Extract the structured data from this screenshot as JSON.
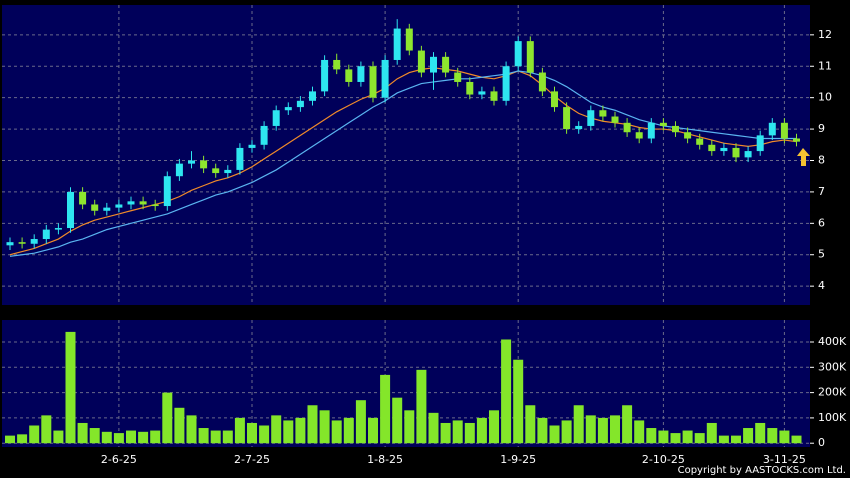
{
  "chart_data": [
    {
      "type": "candlestick",
      "up_color": "#2ee6f0",
      "down_color": "#8ee62e",
      "open": [
        5.3,
        5.4,
        5.35,
        5.5,
        5.8,
        5.85,
        7.0,
        6.6,
        6.4,
        6.5,
        6.6,
        6.7,
        6.6,
        6.55,
        7.5,
        7.9,
        8.0,
        7.75,
        7.6,
        7.7,
        8.4,
        8.5,
        9.1,
        9.6,
        9.7,
        9.9,
        10.2,
        11.2,
        10.9,
        10.5,
        11.0,
        10.0,
        11.2,
        12.2,
        11.5,
        10.8,
        11.3,
        10.8,
        10.5,
        10.1,
        10.2,
        9.9,
        11.0,
        11.8,
        10.8,
        10.2,
        9.7,
        9.0,
        9.1,
        9.6,
        9.4,
        9.2,
        8.9,
        8.7,
        9.2,
        9.1,
        8.9,
        8.7,
        8.5,
        8.3,
        8.4,
        8.1,
        8.3,
        8.8,
        9.2,
        8.7
      ],
      "high": [
        5.55,
        5.55,
        5.65,
        5.95,
        6.0,
        7.15,
        7.15,
        6.75,
        6.65,
        6.75,
        6.85,
        6.85,
        6.75,
        7.65,
        8.05,
        8.3,
        8.15,
        7.9,
        7.85,
        8.55,
        8.65,
        9.25,
        9.75,
        9.85,
        10.05,
        10.35,
        11.35,
        11.4,
        11.05,
        11.15,
        11.15,
        11.35,
        12.5,
        12.35,
        11.65,
        11.45,
        11.45,
        10.95,
        10.65,
        10.35,
        10.35,
        11.15,
        11.95,
        11.95,
        10.95,
        10.35,
        9.85,
        9.25,
        9.75,
        9.75,
        9.55,
        9.35,
        9.05,
        9.35,
        9.35,
        9.25,
        9.05,
        8.85,
        8.65,
        8.55,
        8.55,
        8.45,
        8.95,
        9.35,
        9.35,
        8.85
      ],
      "low": [
        5.15,
        5.2,
        5.2,
        5.35,
        5.65,
        5.7,
        6.45,
        6.25,
        6.25,
        6.35,
        6.45,
        6.45,
        6.4,
        6.4,
        7.35,
        7.75,
        7.6,
        7.45,
        7.45,
        7.55,
        8.25,
        8.35,
        8.95,
        9.45,
        9.55,
        9.75,
        10.05,
        10.75,
        10.35,
        10.35,
        9.85,
        9.85,
        11.05,
        11.35,
        10.65,
        10.25,
        10.65,
        10.35,
        9.95,
        9.95,
        9.75,
        9.75,
        10.85,
        10.65,
        10.05,
        9.55,
        8.85,
        8.85,
        8.95,
        9.25,
        9.05,
        8.75,
        8.55,
        8.55,
        8.95,
        8.75,
        8.55,
        8.35,
        8.15,
        8.15,
        7.95,
        7.95,
        8.15,
        8.65,
        8.55,
        8.45
      ],
      "close": [
        5.4,
        5.35,
        5.5,
        5.8,
        5.85,
        7.0,
        6.6,
        6.4,
        6.5,
        6.6,
        6.7,
        6.6,
        6.55,
        7.5,
        7.9,
        8.0,
        7.75,
        7.6,
        7.7,
        8.4,
        8.5,
        9.1,
        9.6,
        9.7,
        9.9,
        10.2,
        11.2,
        10.9,
        10.5,
        11.0,
        10.0,
        11.2,
        12.2,
        11.5,
        10.8,
        11.3,
        10.8,
        10.5,
        10.1,
        10.2,
        9.9,
        11.0,
        11.8,
        10.8,
        10.2,
        9.7,
        9.0,
        9.1,
        9.6,
        9.4,
        9.2,
        8.9,
        8.7,
        9.2,
        9.1,
        8.9,
        8.7,
        8.5,
        8.3,
        8.4,
        8.1,
        8.3,
        8.8,
        9.2,
        8.7,
        8.6
      ],
      "lines": [
        {
          "color": "#f08a2a",
          "values": [
            5.0,
            5.1,
            5.2,
            5.35,
            5.5,
            5.75,
            5.95,
            6.1,
            6.2,
            6.3,
            6.4,
            6.5,
            6.6,
            6.7,
            6.85,
            7.05,
            7.2,
            7.35,
            7.45,
            7.6,
            7.8,
            8.05,
            8.3,
            8.55,
            8.8,
            9.05,
            9.3,
            9.55,
            9.75,
            9.95,
            10.1,
            10.3,
            10.6,
            10.8,
            10.9,
            10.95,
            10.9,
            10.85,
            10.75,
            10.65,
            10.6,
            10.7,
            10.85,
            10.7,
            10.4,
            10.05,
            9.75,
            9.5,
            9.35,
            9.25,
            9.2,
            9.15,
            9.05,
            9.0,
            9.0,
            8.95,
            8.85,
            8.75,
            8.65,
            8.55,
            8.5,
            8.45,
            8.5,
            8.6,
            8.65,
            8.6
          ]
        },
        {
          "color": "#5ab4f0",
          "values": [
            4.95,
            5.0,
            5.05,
            5.15,
            5.25,
            5.4,
            5.5,
            5.65,
            5.8,
            5.9,
            6.0,
            6.1,
            6.2,
            6.3,
            6.45,
            6.6,
            6.75,
            6.9,
            7.0,
            7.15,
            7.3,
            7.5,
            7.7,
            7.95,
            8.2,
            8.45,
            8.7,
            8.95,
            9.2,
            9.45,
            9.7,
            9.9,
            10.15,
            10.3,
            10.45,
            10.5,
            10.55,
            10.6,
            10.6,
            10.65,
            10.7,
            10.75,
            10.85,
            10.8,
            10.7,
            10.55,
            10.35,
            10.1,
            9.85,
            9.7,
            9.6,
            9.45,
            9.3,
            9.2,
            9.1,
            9.05,
            9.0,
            8.95,
            8.9,
            8.85,
            8.8,
            8.75,
            8.7,
            8.7,
            8.7,
            8.7
          ]
        }
      ],
      "ylim": [
        3.4,
        12.95
      ],
      "yticks": [
        4,
        5,
        6,
        7,
        8,
        9,
        10,
        11,
        12
      ],
      "grid": true
    },
    {
      "type": "bar",
      "color": "#84e62a",
      "categories": [
        null,
        null,
        null,
        null,
        null,
        null,
        null,
        null,
        null,
        "2-6-25",
        null,
        null,
        null,
        null,
        null,
        null,
        null,
        null,
        null,
        null,
        "2-7-25",
        null,
        null,
        null,
        null,
        null,
        null,
        null,
        null,
        null,
        null,
        "1-8-25",
        null,
        null,
        null,
        null,
        null,
        null,
        null,
        null,
        null,
        null,
        "1-9-25",
        null,
        null,
        null,
        null,
        null,
        null,
        null,
        null,
        null,
        null,
        null,
        "2-10-25",
        null,
        null,
        null,
        null,
        null,
        null,
        null,
        null,
        null,
        "3-11-25",
        null
      ],
      "values": [
        30000,
        35000,
        70000,
        110000,
        50000,
        440000,
        80000,
        60000,
        45000,
        40000,
        50000,
        45000,
        50000,
        200000,
        140000,
        110000,
        60000,
        50000,
        50000,
        100000,
        80000,
        70000,
        110000,
        90000,
        100000,
        150000,
        130000,
        90000,
        100000,
        170000,
        100000,
        270000,
        180000,
        130000,
        290000,
        120000,
        80000,
        90000,
        80000,
        100000,
        130000,
        410000,
        330000,
        150000,
        100000,
        70000,
        90000,
        150000,
        110000,
        100000,
        110000,
        150000,
        90000,
        60000,
        50000,
        40000,
        50000,
        40000,
        80000,
        30000,
        30000,
        60000,
        80000,
        60000,
        50000,
        30000
      ],
      "ylim": [
        -15000,
        487000
      ],
      "yticks": [
        0,
        {
          "value": 100000,
          "label": "100K"
        },
        {
          "value": 200000,
          "label": "200K"
        },
        {
          "value": 300000,
          "label": "300K"
        },
        {
          "value": 400000,
          "label": "400K"
        }
      ],
      "grid": true,
      "credit": "Copyright by AASTOCKS.com Ltd."
    }
  ]
}
